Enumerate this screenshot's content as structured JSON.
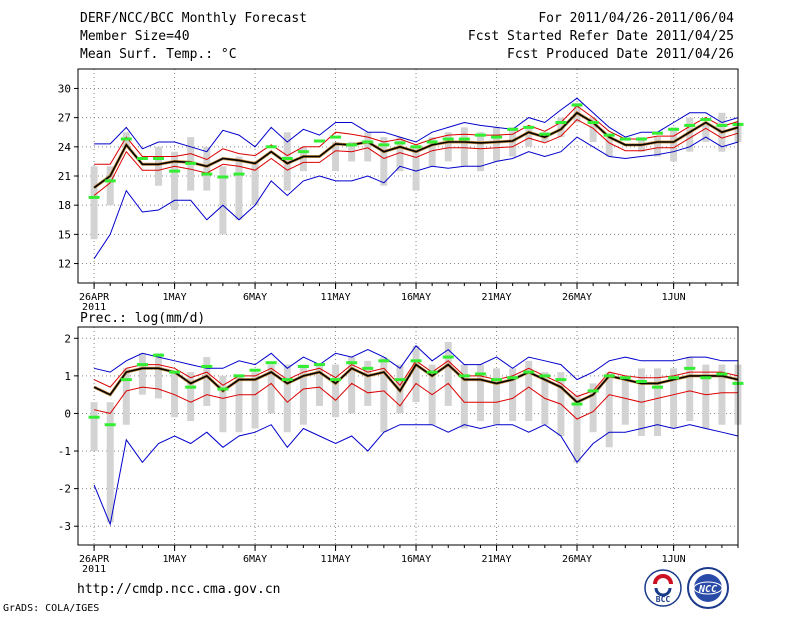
{
  "header": {
    "title": "DERF/NCC/BCC Monthly Forecast",
    "member_size": "Member Size=40",
    "variable1": "Mean Surf. Temp.: °C",
    "period": "For 2011/04/26-2011/06/04",
    "started": "Fcst Started Refer Date 2011/04/25",
    "produced": "Fcst Produced Date 2011/04/26"
  },
  "footer": {
    "url": "http://cmdp.ncc.cma.gov.cn",
    "credit": "GrADS: COLA/IGES"
  },
  "logos": {
    "bcc": "BCC",
    "ncc": "NCC"
  },
  "colors": {
    "bar": "#d3d3d3",
    "green": "#33ee33",
    "blue": "#0000cc",
    "red": "#dd0000",
    "ensemble": "#000000",
    "ensemble_shadow": "#bb6600"
  },
  "chart_data": [
    {
      "type": "line",
      "title": "Mean Surf. Temp.: °C",
      "xlabel": "",
      "ylabel": "°C",
      "ylim": [
        10,
        32
      ],
      "yticks": [
        12,
        15,
        18,
        21,
        24,
        27,
        30
      ],
      "xlim": [
        -1,
        40
      ],
      "xticks": [
        {
          "day": 0,
          "label": "26APR",
          "sublabel": "2011"
        },
        {
          "day": 5,
          "label": "1MAY"
        },
        {
          "day": 10,
          "label": "6MAY"
        },
        {
          "day": 15,
          "label": "11MAY"
        },
        {
          "day": 20,
          "label": "16MAY"
        },
        {
          "day": 25,
          "label": "21MAY"
        },
        {
          "day": 30,
          "label": "26MAY"
        },
        {
          "day": 36,
          "label": "1JUN"
        }
      ],
      "grid": true,
      "series": [
        {
          "name": "ensemble-mean",
          "values": [
            19.8,
            21.0,
            24.2,
            22.2,
            22.2,
            22.5,
            22.4,
            22.0,
            22.8,
            22.6,
            22.3,
            23.5,
            22.3,
            23.0,
            23.0,
            24.3,
            24.2,
            24.5,
            23.5,
            24.0,
            23.5,
            24.2,
            24.5,
            24.5,
            24.4,
            24.5,
            24.6,
            25.5,
            25.0,
            25.8,
            27.5,
            26.5,
            25.0,
            24.2,
            24.2,
            24.5,
            24.5,
            25.5,
            26.5,
            25.5,
            26.0
          ]
        },
        {
          "name": "upper",
          "values": [
            24.3,
            24.3,
            26.0,
            23.8,
            24.5,
            24.5,
            24.0,
            23.5,
            25.7,
            25.2,
            24.0,
            26.0,
            24.5,
            25.8,
            25.2,
            26.5,
            26.5,
            25.5,
            25.5,
            25.0,
            24.5,
            25.5,
            26.0,
            26.5,
            26.2,
            26.0,
            25.8,
            27.0,
            26.5,
            27.8,
            29.0,
            27.5,
            26.0,
            25.0,
            25.5,
            25.5,
            26.5,
            27.5,
            27.5,
            26.5,
            27.0
          ]
        },
        {
          "name": "upper-mid",
          "values": [
            22.2,
            22.2,
            25.0,
            23.0,
            23.0,
            23.0,
            23.3,
            22.7,
            23.8,
            23.3,
            23.1,
            24.2,
            23.1,
            24.0,
            24.0,
            25.5,
            25.3,
            25.0,
            24.5,
            24.8,
            24.2,
            24.8,
            25.2,
            25.3,
            25.2,
            25.2,
            25.3,
            26.2,
            25.6,
            26.5,
            28.2,
            27.0,
            25.6,
            24.8,
            24.8,
            25.1,
            25.1,
            26.1,
            27.0,
            26.1,
            26.6
          ]
        },
        {
          "name": "lower-mid",
          "values": [
            19.0,
            20.3,
            23.5,
            21.6,
            21.6,
            22.0,
            21.7,
            21.3,
            22.2,
            22.0,
            21.6,
            22.8,
            21.6,
            22.4,
            22.4,
            23.6,
            23.5,
            23.9,
            22.8,
            23.4,
            22.9,
            23.6,
            23.9,
            23.9,
            23.8,
            23.9,
            24.0,
            24.9,
            24.4,
            25.1,
            26.8,
            25.9,
            24.4,
            23.6,
            23.6,
            23.9,
            23.9,
            24.9,
            25.9,
            24.9,
            25.4
          ]
        },
        {
          "name": "lower",
          "values": [
            12.5,
            15.0,
            19.5,
            17.3,
            17.5,
            18.5,
            18.5,
            16.5,
            18.0,
            16.5,
            18.0,
            20.5,
            19.0,
            20.5,
            21.0,
            20.5,
            20.5,
            21.0,
            20.3,
            22.0,
            21.5,
            22.0,
            21.8,
            22.0,
            22.0,
            22.5,
            22.8,
            23.5,
            23.0,
            23.5,
            25.0,
            24.0,
            23.0,
            22.8,
            23.0,
            23.2,
            23.5,
            24.0,
            25.0,
            24.0,
            24.5
          ]
        }
      ],
      "observed": [
        18.8,
        20.5,
        24.8,
        22.8,
        22.8,
        21.5,
        22.3,
        21.2,
        20.9,
        21.2,
        null,
        24.0,
        22.8,
        23.5,
        24.6,
        25.0,
        24.2,
        24.5,
        24.2,
        24.4,
        24.0,
        24.5,
        24.8,
        24.8,
        25.2,
        25.0,
        25.8,
        26.0,
        25.3,
        26.5,
        28.3,
        26.5,
        25.2,
        24.8,
        24.8,
        25.4,
        25.8,
        26.2,
        26.8,
        26.2,
        26.3
      ],
      "range_bars": [
        [
          14.5,
          22.0
        ],
        [
          18.0,
          22.0
        ],
        [
          24.0,
          25.5
        ],
        [
          null,
          null
        ],
        [
          20.0,
          24.0
        ],
        [
          17.5,
          23.5
        ],
        [
          19.5,
          25.0
        ],
        [
          19.5,
          24.0
        ],
        [
          15.0,
          22.0
        ],
        [
          16.5,
          23.0
        ],
        [
          18.0,
          22.5
        ],
        [
          null,
          null
        ],
        [
          19.5,
          25.5
        ],
        [
          21.5,
          24.0
        ],
        [
          null,
          null
        ],
        [
          21.5,
          24.5
        ],
        [
          22.5,
          24.5
        ],
        [
          22.5,
          25.5
        ],
        [
          20.0,
          25.0
        ],
        [
          21.5,
          25.0
        ],
        [
          19.5,
          24.0
        ],
        [
          22.0,
          25.0
        ],
        [
          22.5,
          25.5
        ],
        [
          22.0,
          26.0
        ],
        [
          21.5,
          25.5
        ],
        [
          22.5,
          26.0
        ],
        [
          23.0,
          26.0
        ],
        [
          24.0,
          26.0
        ],
        [
          24.5,
          25.5
        ],
        [
          25.0,
          27.0
        ],
        [
          26.5,
          28.5
        ],
        [
          24.5,
          27.0
        ],
        [
          23.0,
          25.0
        ],
        [
          null,
          null
        ],
        [
          23.5,
          25.0
        ],
        [
          23.0,
          25.0
        ],
        [
          22.5,
          26.0
        ],
        [
          23.5,
          27.0
        ],
        [
          24.5,
          26.5
        ],
        [
          23.5,
          27.5
        ],
        [
          24.5,
          26.5
        ]
      ]
    },
    {
      "type": "line",
      "title": "Prec.: log(mm/d)",
      "xlabel": "",
      "ylabel": "log(mm/d)",
      "ylim": [
        -3.5,
        2.3
      ],
      "yticks": [
        -3,
        -2,
        -1,
        0,
        1,
        2
      ],
      "xlim": [
        -1,
        40
      ],
      "xticks": [
        {
          "day": 0,
          "label": "26APR",
          "sublabel": "2011"
        },
        {
          "day": 5,
          "label": "1MAY"
        },
        {
          "day": 10,
          "label": "6MAY"
        },
        {
          "day": 15,
          "label": "11MAY"
        },
        {
          "day": 20,
          "label": "16MAY"
        },
        {
          "day": 25,
          "label": "21MAY"
        },
        {
          "day": 30,
          "label": "26MAY"
        },
        {
          "day": 36,
          "label": "1JUN"
        }
      ],
      "grid": true,
      "series": [
        {
          "name": "ensemble-mean",
          "values": [
            0.7,
            0.5,
            1.1,
            1.2,
            1.2,
            1.1,
            0.8,
            1.0,
            0.6,
            0.9,
            0.9,
            1.1,
            0.8,
            1.0,
            1.1,
            0.8,
            1.2,
            1.0,
            1.1,
            0.6,
            1.3,
            1.0,
            1.3,
            0.9,
            0.9,
            0.8,
            0.9,
            1.1,
            0.9,
            0.7,
            0.3,
            0.5,
            1.0,
            0.9,
            0.8,
            0.8,
            0.9,
            1.0,
            1.0,
            1.0,
            0.9
          ]
        },
        {
          "name": "upper",
          "values": [
            1.2,
            1.1,
            1.4,
            1.6,
            1.5,
            1.4,
            1.3,
            1.2,
            1.2,
            1.4,
            1.3,
            1.6,
            1.2,
            1.5,
            1.3,
            1.6,
            1.5,
            1.7,
            1.5,
            1.2,
            1.8,
            1.4,
            1.7,
            1.3,
            1.3,
            1.5,
            1.2,
            1.5,
            1.4,
            1.3,
            0.9,
            1.1,
            1.4,
            1.5,
            1.4,
            1.4,
            1.4,
            1.5,
            1.5,
            1.4,
            1.4
          ]
        },
        {
          "name": "upper-mid",
          "values": [
            0.9,
            0.7,
            1.2,
            1.3,
            1.3,
            1.2,
            0.95,
            1.1,
            0.75,
            1.0,
            1.0,
            1.2,
            0.9,
            1.1,
            1.2,
            0.95,
            1.3,
            1.1,
            1.2,
            0.75,
            1.4,
            1.1,
            1.4,
            1.0,
            1.0,
            0.9,
            1.0,
            1.2,
            1.0,
            0.8,
            0.45,
            0.6,
            1.1,
            1.0,
            0.95,
            0.95,
            1.0,
            1.1,
            1.1,
            1.1,
            1.0
          ]
        },
        {
          "name": "lower-mid",
          "values": [
            0.1,
            0.0,
            0.6,
            0.7,
            0.65,
            0.5,
            0.3,
            0.5,
            0.4,
            0.5,
            0.5,
            0.8,
            0.3,
            0.65,
            0.7,
            0.35,
            0.8,
            0.55,
            0.6,
            0.2,
            0.8,
            0.5,
            0.8,
            0.3,
            0.3,
            0.3,
            0.4,
            0.7,
            0.4,
            0.25,
            -0.15,
            0.05,
            0.5,
            0.4,
            0.3,
            0.4,
            0.5,
            0.6,
            0.5,
            0.55,
            0.55
          ]
        },
        {
          "name": "lower",
          "values": [
            -1.9,
            -2.95,
            -0.7,
            -1.3,
            -0.8,
            -0.6,
            -0.8,
            -0.5,
            -0.9,
            -0.6,
            -0.5,
            -0.3,
            -0.9,
            -0.4,
            -0.6,
            -0.8,
            -0.6,
            -1.0,
            -0.5,
            -0.3,
            -0.3,
            -0.3,
            -0.5,
            -0.3,
            -0.4,
            -0.3,
            -0.3,
            -0.5,
            -0.3,
            -0.6,
            -1.3,
            -0.8,
            -0.5,
            -0.5,
            -0.4,
            -0.3,
            -0.4,
            -0.3,
            -0.4,
            -0.5,
            -0.6
          ]
        }
      ],
      "observed": [
        -0.1,
        -0.3,
        0.9,
        1.3,
        1.55,
        1.1,
        0.7,
        1.25,
        0.65,
        1.0,
        1.15,
        1.35,
        0.9,
        1.25,
        1.3,
        0.9,
        1.35,
        1.2,
        1.4,
        0.9,
        1.4,
        1.1,
        1.5,
        1.0,
        1.05,
        0.9,
        0.95,
        1.1,
        1.0,
        0.9,
        0.25,
        0.6,
        1.0,
        0.95,
        0.85,
        0.7,
        0.95,
        1.2,
        0.95,
        1.05,
        0.8
      ],
      "range_bars": [
        [
          -1.0,
          0.3
        ],
        [
          -2.9,
          0.3
        ],
        [
          -0.3,
          1.2
        ],
        [
          0.5,
          1.6
        ],
        [
          0.4,
          1.6
        ],
        [
          -0.1,
          1.1
        ],
        [
          -0.2,
          1.1
        ],
        [
          0.2,
          1.5
        ],
        [
          -0.5,
          1.0
        ],
        [
          -0.5,
          1.0
        ],
        [
          -0.4,
          1.1
        ],
        [
          0.0,
          1.3
        ],
        [
          -0.5,
          1.3
        ],
        [
          -0.3,
          1.3
        ],
        [
          0.2,
          1.3
        ],
        [
          -0.1,
          1.3
        ],
        [
          0.0,
          1.5
        ],
        [
          0.2,
          1.4
        ],
        [
          -0.5,
          1.5
        ],
        [
          0.0,
          1.3
        ],
        [
          0.3,
          1.8
        ],
        [
          -0.3,
          1.3
        ],
        [
          0.2,
          1.9
        ],
        [
          -0.4,
          1.3
        ],
        [
          -0.2,
          1.3
        ],
        [
          -0.3,
          1.2
        ],
        [
          -0.2,
          1.2
        ],
        [
          -0.2,
          1.4
        ],
        [
          -0.3,
          1.1
        ],
        [
          -0.6,
          1.1
        ],
        [
          -1.3,
          0.5
        ],
        [
          -0.5,
          0.8
        ],
        [
          -0.9,
          1.1
        ],
        [
          -0.3,
          1.0
        ],
        [
          -0.6,
          1.2
        ],
        [
          -0.6,
          1.2
        ],
        [
          -0.4,
          1.2
        ],
        [
          -0.2,
          1.5
        ],
        [
          -0.4,
          1.3
        ],
        [
          -0.3,
          1.3
        ],
        [
          -0.3,
          1.3
        ]
      ]
    }
  ]
}
